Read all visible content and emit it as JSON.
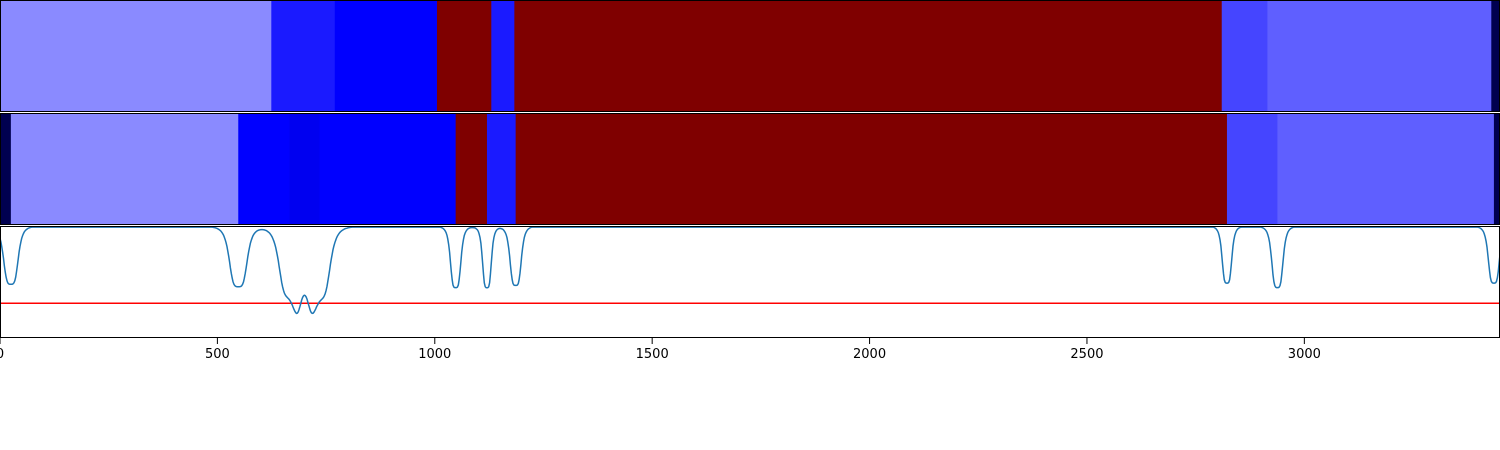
{
  "chart_data": {
    "type": "heatmap",
    "x_range": [
      0,
      3450
    ],
    "x_ticks": [
      "0",
      "500",
      "1000",
      "1500",
      "2000",
      "2500",
      "3000"
    ],
    "x_tick_values": [
      0,
      500,
      1000,
      1500,
      2000,
      2500,
      3000
    ],
    "grid": false,
    "tracks": [
      {
        "segments": [
          {
            "start": 0,
            "end": 624,
            "color": "#8a8aff"
          },
          {
            "start": 624,
            "end": 770,
            "color": "#1a1aff"
          },
          {
            "start": 770,
            "end": 1005,
            "color": "#0000ff"
          },
          {
            "start": 1005,
            "end": 1130,
            "color": "#7f0000"
          },
          {
            "start": 1130,
            "end": 1183,
            "color": "#1a1aff"
          },
          {
            "start": 1183,
            "end": 2810,
            "color": "#7f0000"
          },
          {
            "start": 2810,
            "end": 2915,
            "color": "#4545ff"
          },
          {
            "start": 2915,
            "end": 3430,
            "color": "#5f5fff"
          },
          {
            "start": 3430,
            "end": 3450,
            "color": "#000050"
          }
        ]
      },
      {
        "segments": [
          {
            "start": 0,
            "end": 25,
            "color": "#000050"
          },
          {
            "start": 25,
            "end": 548,
            "color": "#8a8aff"
          },
          {
            "start": 548,
            "end": 666,
            "color": "#0000ff"
          },
          {
            "start": 666,
            "end": 735,
            "color": "#0000f0"
          },
          {
            "start": 735,
            "end": 1048,
            "color": "#0000ff"
          },
          {
            "start": 1048,
            "end": 1120,
            "color": "#7f0000"
          },
          {
            "start": 1120,
            "end": 1186,
            "color": "#1a1aff"
          },
          {
            "start": 1186,
            "end": 2822,
            "color": "#7f0000"
          },
          {
            "start": 2822,
            "end": 2938,
            "color": "#4545ff"
          },
          {
            "start": 2938,
            "end": 3436,
            "color": "#5f5fff"
          },
          {
            "start": 3436,
            "end": 3450,
            "color": "#000050"
          }
        ]
      }
    ],
    "signal": {
      "color": "#1f77b4",
      "ylim": [
        0,
        1
      ],
      "baseline": 1.0,
      "dips": [
        {
          "x": 25,
          "depth": 0.52,
          "width": 18
        },
        {
          "x": 548,
          "depth": 0.54,
          "width": 22
        },
        {
          "x": 666,
          "depth": 0.6,
          "width": 26
        },
        {
          "x": 700,
          "depth": 0.32,
          "width": 22
        },
        {
          "x": 735,
          "depth": 0.62,
          "width": 26
        },
        {
          "x": 1048,
          "depth": 0.55,
          "width": 13
        },
        {
          "x": 1120,
          "depth": 0.55,
          "width": 11
        },
        {
          "x": 1186,
          "depth": 0.53,
          "width": 14
        },
        {
          "x": 2822,
          "depth": 0.51,
          "width": 12
        },
        {
          "x": 2938,
          "depth": 0.55,
          "width": 14
        },
        {
          "x": 3436,
          "depth": 0.51,
          "width": 14
        }
      ],
      "threshold": 0.31,
      "threshold_color": "#ff0000"
    }
  }
}
